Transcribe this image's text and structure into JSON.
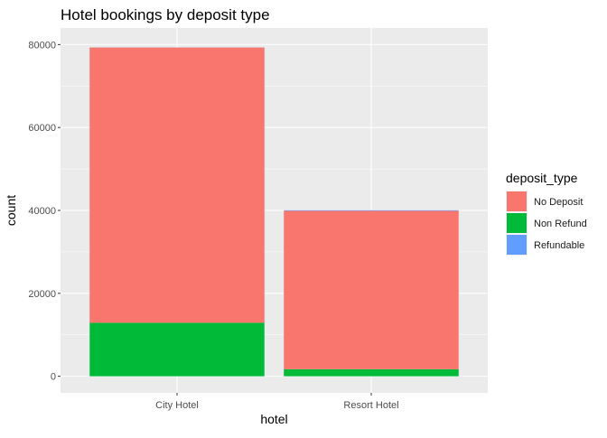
{
  "chart_data": {
    "type": "bar",
    "stacked": true,
    "title": "Hotel bookings by deposit type",
    "xlabel": "hotel",
    "ylabel": "count",
    "categories": [
      "City Hotel",
      "Resort Hotel"
    ],
    "ylim": [
      -4000,
      84000
    ],
    "yticks": [
      0,
      20000,
      40000,
      60000,
      80000
    ],
    "ytick_labels": [
      "0",
      "20000",
      "40000",
      "60000",
      "80000"
    ],
    "grid": true,
    "legend_position": "right",
    "legend_title": "deposit_type",
    "series": [
      {
        "name": "No Deposit",
        "color": "#F8766D",
        "values": [
          66400,
          38200
        ]
      },
      {
        "name": "Non Refund",
        "color": "#00BA38",
        "values": [
          12900,
          1700
        ]
      },
      {
        "name": "Refundable",
        "color": "#619CFF",
        "values": [
          20,
          140
        ]
      }
    ],
    "stack_order": [
      "Non Refund",
      "No Deposit",
      "Refundable"
    ]
  }
}
